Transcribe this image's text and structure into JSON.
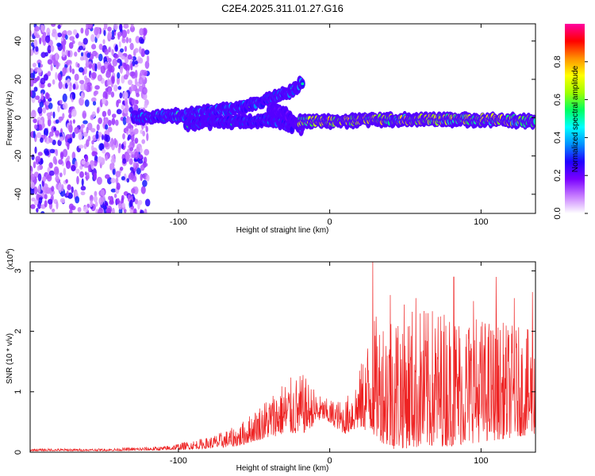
{
  "chart_data": [
    {
      "type": "heatmap",
      "title": "C2E4.2025.311.01.27.G16",
      "xlabel": "Height of straight line (km)",
      "ylabel": "Frequency (Hz)",
      "xlim": [
        -198,
        136
      ],
      "ylim": [
        -50,
        49
      ],
      "xticks": [
        -100,
        0,
        100
      ],
      "yticks": [
        -40,
        -20,
        0,
        20,
        40
      ],
      "xtick_labels": [
        "-100",
        "0",
        "100"
      ],
      "ytick_labels": [
        "-40",
        "-20",
        "0",
        "20",
        "40"
      ],
      "colorbar": {
        "label": "Normalized spectral amplitude",
        "range": [
          0.0,
          1.0
        ],
        "ticks": [
          0.0,
          0.2,
          0.4,
          0.6,
          0.8
        ],
        "tick_labels": [
          "0.0",
          "0.2",
          "0.4",
          "0.6",
          "0.8"
        ],
        "colors": [
          "#ffffff",
          "#c77dff",
          "#7a00ff",
          "#2000ff",
          "#0090ff",
          "#00ffff",
          "#00ff60",
          "#a0ff00",
          "#ffff00",
          "#ff9000",
          "#ff0000",
          "#ff00a0"
        ]
      },
      "features": [
        {
          "name": "broadband noise",
          "x_range": [
            -198,
            -120
          ],
          "freq_range": [
            -50,
            49
          ],
          "amplitude": 0.2
        },
        {
          "name": "main trace",
          "points": [
            [
              -130,
              0
            ],
            [
              -100,
              1
            ],
            [
              -80,
              3
            ],
            [
              -60,
              5
            ],
            [
              -45,
              8
            ],
            [
              -35,
              11
            ],
            [
              -25,
              14
            ],
            [
              -18,
              19
            ]
          ],
          "amplitude": 0.45
        },
        {
          "name": "lower branch",
          "points": [
            [
              -95,
              -3
            ],
            [
              -70,
              -2
            ],
            [
              -50,
              -2
            ],
            [
              -40,
              -1
            ],
            [
              -30,
              -3
            ],
            [
              -25,
              -5
            ]
          ],
          "amplitude": 0.4
        },
        {
          "name": "falling branch",
          "points": [
            [
              -40,
              5
            ],
            [
              -30,
              2
            ],
            [
              -22,
              -3
            ],
            [
              -18,
              -6
            ]
          ],
          "amplitude": 0.3
        },
        {
          "name": "stable trace",
          "points": [
            [
              -20,
              -2
            ],
            [
              0,
              -2
            ],
            [
              40,
              -1
            ],
            [
              80,
              -1
            ],
            [
              110,
              -1
            ],
            [
              136,
              -2
            ]
          ],
          "amplitude": 0.85
        }
      ]
    },
    {
      "type": "line",
      "xlabel": "Height of straight line (km)",
      "ylabel": "SNR (10 * v/v)",
      "multiplier_label": "(x10",
      "multiplier_exp": "4",
      "multiplier_close": ")",
      "xlim": [
        -198,
        136
      ],
      "ylim": [
        0,
        3.15
      ],
      "xticks": [
        -100,
        0,
        100
      ],
      "yticks": [
        0,
        1,
        2,
        3
      ],
      "xtick_labels": [
        "-100",
        "0",
        "100"
      ],
      "ytick_labels": [
        "0",
        "1",
        "2",
        "3"
      ],
      "color": "#ee2222",
      "envelope": [
        {
          "x": -198,
          "base": 0.02,
          "peak": 0.06
        },
        {
          "x": -150,
          "base": 0.02,
          "peak": 0.06
        },
        {
          "x": -110,
          "base": 0.03,
          "peak": 0.1
        },
        {
          "x": -80,
          "base": 0.06,
          "peak": 0.25
        },
        {
          "x": -60,
          "base": 0.1,
          "peak": 0.45
        },
        {
          "x": -50,
          "base": 0.18,
          "peak": 0.7
        },
        {
          "x": -30,
          "base": 0.3,
          "peak": 1.2
        },
        {
          "x": -18,
          "base": 0.3,
          "peak": 1.3
        },
        {
          "x": -5,
          "base": 0.55,
          "peak": 0.9
        },
        {
          "x": 10,
          "base": 0.3,
          "peak": 0.85
        },
        {
          "x": 20,
          "base": 0.4,
          "peak": 1.4
        },
        {
          "x": 28,
          "base": 0.3,
          "peak": 2.2
        },
        {
          "x": 40,
          "base": 0.05,
          "peak": 2.5
        },
        {
          "x": 80,
          "base": 0.1,
          "peak": 2.4
        },
        {
          "x": 110,
          "base": 0.2,
          "peak": 2.2
        },
        {
          "x": 136,
          "base": 0.3,
          "peak": 2.0
        }
      ],
      "spikes": [
        {
          "x": 28.5,
          "y": 3.15
        },
        {
          "x": 40,
          "y": 2.6
        },
        {
          "x": 57,
          "y": 2.55
        },
        {
          "x": 65,
          "y": 2.3
        },
        {
          "x": 82,
          "y": 2.9
        },
        {
          "x": 95,
          "y": 2.5
        },
        {
          "x": 110,
          "y": 2.9
        },
        {
          "x": 122,
          "y": 2.55
        },
        {
          "x": 134,
          "y": 2.65
        }
      ]
    }
  ]
}
